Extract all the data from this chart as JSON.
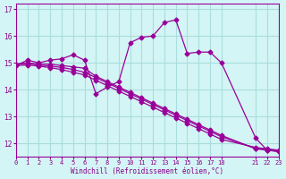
{
  "bg_color": "#d4f5f5",
  "line_color": "#990099",
  "grid_color": "#aadddd",
  "xlabel": "Windchill (Refroidissement éolien,°C)",
  "xlabel_color": "#880088",
  "tick_color": "#880088",
  "xlim": [
    0,
    23
  ],
  "ylim": [
    11.5,
    17.2
  ],
  "yticks": [
    12,
    13,
    14,
    15,
    16,
    17
  ],
  "xticks": [
    0,
    1,
    2,
    3,
    4,
    5,
    6,
    7,
    8,
    9,
    10,
    11,
    12,
    13,
    14,
    15,
    16,
    17,
    18,
    21,
    22,
    23
  ],
  "series": [
    [
      14.9,
      15.1,
      15.0,
      15.1,
      15.15,
      15.3,
      15.1,
      13.85,
      14.1,
      14.3,
      15.75,
      15.95,
      16.0,
      16.5,
      16.6,
      15.35,
      15.4,
      15.4,
      15.0,
      12.2,
      11.75,
      11.7
    ],
    [
      14.95,
      15.0,
      14.95,
      14.95,
      14.9,
      14.85,
      14.8,
      14.5,
      14.3,
      14.1,
      13.9,
      13.7,
      13.5,
      13.3,
      13.1,
      12.9,
      12.7,
      12.5,
      12.3,
      11.8,
      11.75,
      11.7
    ],
    [
      14.95,
      14.98,
      14.92,
      14.88,
      14.83,
      14.75,
      14.65,
      14.45,
      14.25,
      14.05,
      13.85,
      13.65,
      13.45,
      13.25,
      13.05,
      12.85,
      12.65,
      12.45,
      12.25,
      11.82,
      11.78,
      11.72
    ],
    [
      14.9,
      14.92,
      14.88,
      14.82,
      14.75,
      14.65,
      14.55,
      14.35,
      14.15,
      13.95,
      13.75,
      13.55,
      13.35,
      13.15,
      12.95,
      12.75,
      12.55,
      12.35,
      12.15,
      11.85,
      11.8,
      11.75
    ]
  ],
  "x_values": [
    0,
    1,
    2,
    3,
    4,
    5,
    6,
    7,
    8,
    9,
    10,
    11,
    12,
    13,
    14,
    15,
    16,
    17,
    18,
    21,
    22,
    23
  ]
}
